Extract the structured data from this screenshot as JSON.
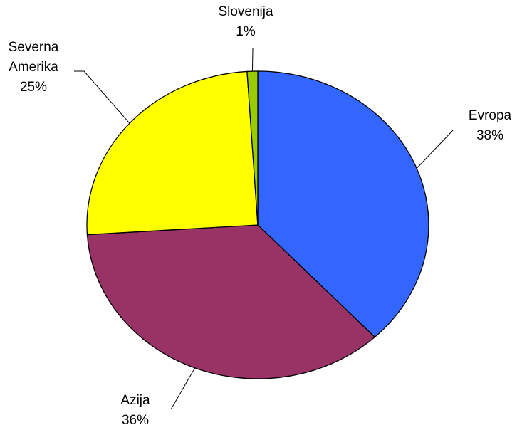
{
  "chart_data": {
    "type": "pie",
    "categories": [
      "Evropa",
      "Azija",
      "Severna Amerika",
      "Slovenija"
    ],
    "values": [
      38,
      36,
      25,
      1
    ],
    "value_labels": [
      "38%",
      "36%",
      "25%",
      "1%"
    ],
    "colors": [
      "#3366ff",
      "#993366",
      "#ffff00",
      "#99cc00"
    ]
  }
}
